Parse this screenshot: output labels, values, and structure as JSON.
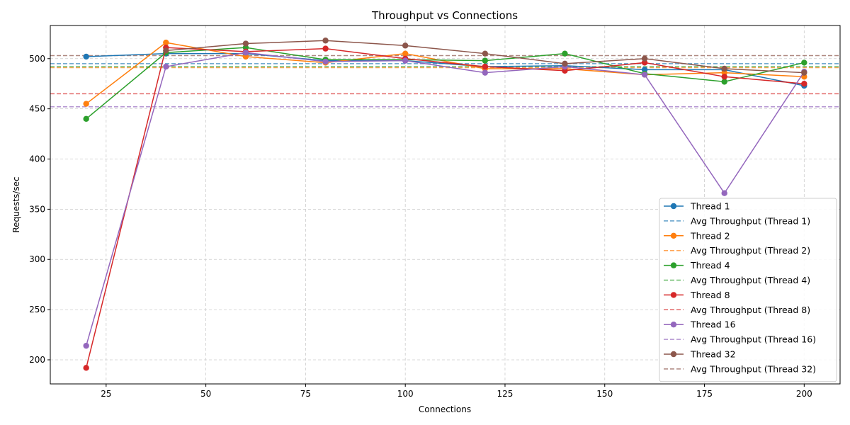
{
  "chart_data": {
    "type": "line",
    "title": "Throughput vs Connections",
    "xlabel": "Connections",
    "ylabel": "Requests/sec",
    "xlim": [
      11,
      209
    ],
    "ylim": [
      176,
      533
    ],
    "xticks": [
      25,
      50,
      75,
      100,
      125,
      150,
      175,
      200
    ],
    "yticks": [
      200,
      250,
      300,
      350,
      400,
      450,
      500
    ],
    "grid": true,
    "legend_position": "bottom-right",
    "x": [
      20,
      40,
      60,
      80,
      100,
      120,
      140,
      160,
      180,
      200
    ],
    "series": [
      {
        "name": "Thread 1",
        "color": "#1f77b4",
        "values": [
          502,
          505,
          505,
          498,
          498,
          492,
          493,
          489,
          489,
          473
        ],
        "avg": 495,
        "avg_name": "Avg Throughput (Thread 1)"
      },
      {
        "name": "Thread 2",
        "color": "#ff7f0e",
        "values": [
          455,
          516,
          502,
          496,
          505,
          490,
          490,
          484,
          486,
          482
        ],
        "avg": 491,
        "avg_name": "Avg Throughput (Thread 2)"
      },
      {
        "name": "Thread 4",
        "color": "#2ca02c",
        "values": [
          440,
          506,
          511,
          499,
          499,
          498,
          505,
          485,
          477,
          496
        ],
        "avg": 492,
        "avg_name": "Avg Throughput (Thread 4)"
      },
      {
        "name": "Thread 8",
        "color": "#d62728",
        "values": [
          192,
          511,
          507,
          510,
          500,
          492,
          488,
          496,
          482,
          475
        ],
        "avg": 465,
        "avg_name": "Avg Throughput (Thread 8)"
      },
      {
        "name": "Thread 16",
        "color": "#9467bd",
        "values": [
          214,
          492,
          506,
          497,
          498,
          486,
          492,
          484,
          366,
          487
        ],
        "avg": 452,
        "avg_name": "Avg Throughput (Thread 16)"
      },
      {
        "name": "Thread 32",
        "color": "#8c564b",
        "values": [
          null,
          508,
          515,
          518,
          513,
          505,
          495,
          500,
          490,
          486
        ],
        "avg": 503,
        "avg_name": "Avg Throughput (Thread 32)"
      }
    ]
  }
}
